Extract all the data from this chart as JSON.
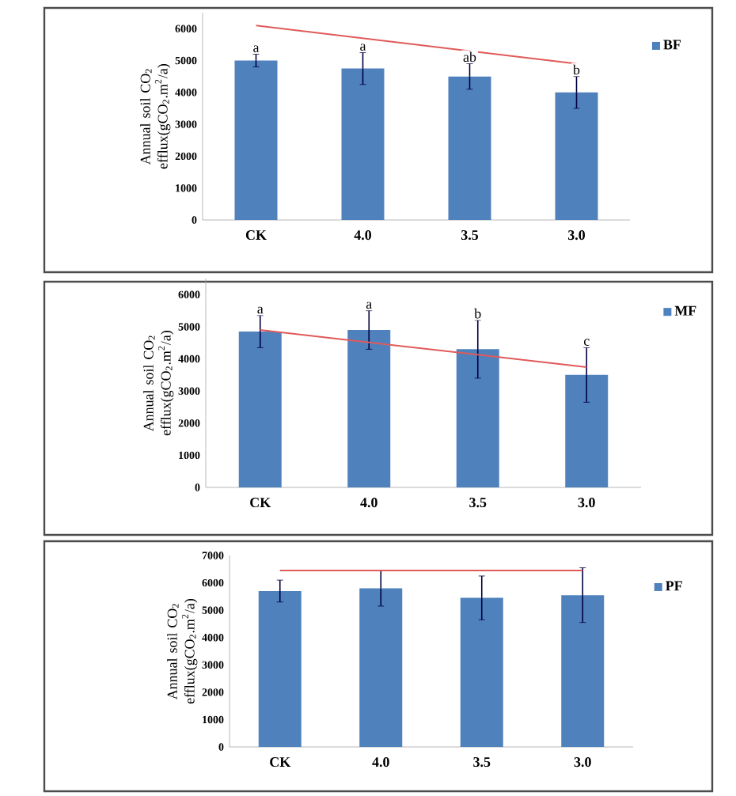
{
  "chart_data": [
    {
      "type": "bar",
      "categories": [
        "CK",
        "4.0",
        "3.5",
        "3.0"
      ],
      "ylabel": "Annual soil CO$_{2}$ efflux(gCO$_{2}$.m$^{2}$/a)",
      "ylim": [
        0,
        6500
      ],
      "yticks": [
        0,
        1000,
        2000,
        3000,
        4000,
        5000,
        6000
      ],
      "legend": "right",
      "series": [
        {
          "name": "BF",
          "color": "#4f81bd",
          "values": [
            5000,
            4750,
            4500,
            4000
          ],
          "errors": [
            200,
            500,
            400,
            500
          ]
        },
        {
          "type": "line",
          "color": "#e05a5a",
          "values": [
            6100,
            5700,
            5300,
            4900
          ]
        }
      ],
      "annotations": [
        "a",
        "a",
        "ab",
        "b"
      ]
    },
    {
      "type": "bar",
      "categories": [
        "CK",
        "4.0",
        "3.5",
        "3.0"
      ],
      "ylabel": "Annual soil CO$_{2}$ efflux(gCO$_{2}$.m$^{2}$/a)",
      "ylim": [
        0,
        6500
      ],
      "yticks": [
        0,
        1000,
        2000,
        3000,
        4000,
        5000,
        6000
      ],
      "legend": "right",
      "series": [
        {
          "name": "MF",
          "color": "#4f81bd",
          "values": [
            4850,
            4900,
            4300,
            3500
          ],
          "errors": [
            500,
            600,
            900,
            850
          ]
        },
        {
          "type": "line",
          "color": "#e05a5a",
          "values": [
            4900,
            4510,
            4130,
            3740
          ]
        }
      ],
      "annotations": [
        "a",
        "a",
        "b",
        "c"
      ]
    },
    {
      "type": "bar",
      "categories": [
        "CK",
        "4.0",
        "3.5",
        "3.0"
      ],
      "ylabel": "Annual soil CO$_{2}$ efflux(gCO$_{2}$.m$^{2}$/a)",
      "ylim": [
        0,
        7000
      ],
      "yticks": [
        0,
        1000,
        2000,
        3000,
        4000,
        5000,
        6000,
        7000
      ],
      "legend": "right",
      "series": [
        {
          "name": "PF",
          "color": "#4f81bd",
          "values": [
            5700,
            5800,
            5450,
            5550
          ],
          "errors": [
            400,
            650,
            800,
            1000
          ]
        },
        {
          "type": "line",
          "color": "#e05a5a",
          "values": [
            6450,
            6450,
            6450,
            6450
          ]
        }
      ]
    }
  ]
}
